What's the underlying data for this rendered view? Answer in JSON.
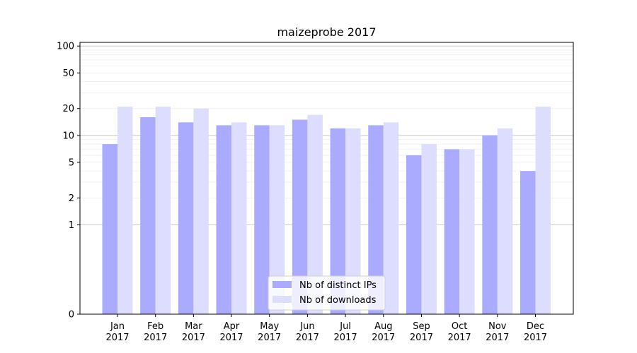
{
  "chart_data": {
    "type": "bar",
    "title": "maizeprobe 2017",
    "y_scale": "symlog",
    "ylim": [
      0,
      110
    ],
    "y_ticks": [
      0,
      1,
      2,
      5,
      10,
      20,
      50,
      100
    ],
    "grid": "horizontal",
    "legend_position": "bottom-center",
    "categories": [
      [
        "Jan",
        "2017"
      ],
      [
        "Feb",
        "2017"
      ],
      [
        "Mar",
        "2017"
      ],
      [
        "Apr",
        "2017"
      ],
      [
        "May",
        "2017"
      ],
      [
        "Jun",
        "2017"
      ],
      [
        "Jul",
        "2017"
      ],
      [
        "Aug",
        "2017"
      ],
      [
        "Sep",
        "2017"
      ],
      [
        "Oct",
        "2017"
      ],
      [
        "Nov",
        "2017"
      ],
      [
        "Dec",
        "2017"
      ]
    ],
    "series": [
      {
        "name": "Nb of distinct IPs",
        "color": "#aaaaff",
        "values": [
          8,
          16,
          14,
          13,
          13,
          15,
          12,
          13,
          6,
          7,
          10,
          4
        ]
      },
      {
        "name": "Nb of downloads",
        "color": "#ddddff",
        "values": [
          21,
          21,
          20,
          14,
          13,
          17,
          12,
          14,
          8,
          7,
          12,
          21
        ]
      }
    ]
  }
}
